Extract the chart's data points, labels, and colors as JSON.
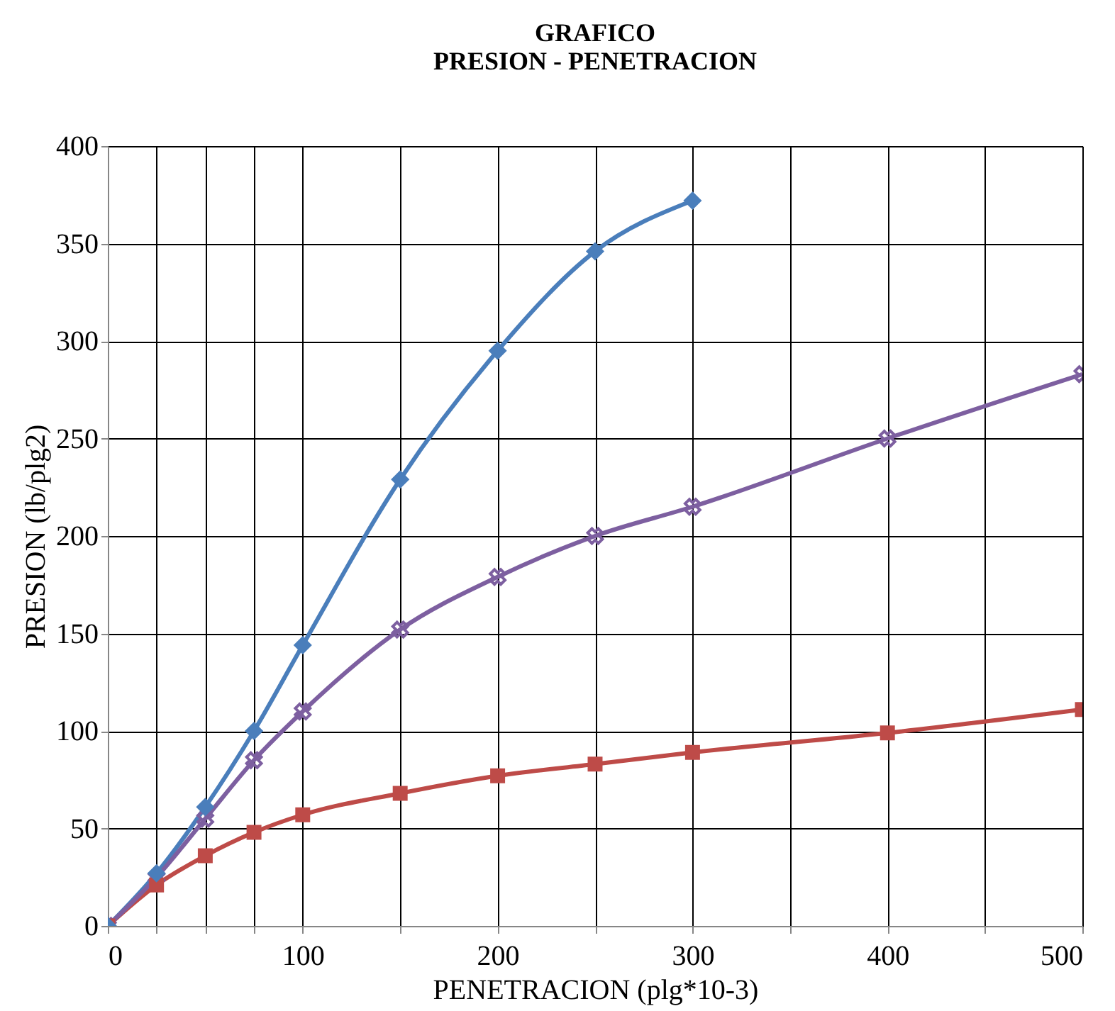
{
  "chart_data": {
    "type": "line",
    "title": [
      "GRAFICO",
      "PRESION - PENETRACION"
    ],
    "xlabel": "PENETRACION (plg*10-3)",
    "ylabel": "PRESION (lb/plg2)",
    "x": [
      0,
      25,
      50,
      75,
      100,
      150,
      200,
      250,
      300,
      400,
      500
    ],
    "series": [
      {
        "color": "#4a7ebb",
        "marker": "diamond",
        "values": [
          0,
          27,
          61,
          100,
          144,
          229,
          295,
          346,
          372,
          null,
          null
        ]
      },
      {
        "color": "#be4b48",
        "marker": "square",
        "values": [
          0,
          21,
          36,
          48,
          57,
          68,
          77,
          83,
          89,
          99,
          111
        ]
      },
      {
        "color": "#7d5fa0",
        "marker": "cross",
        "values": [
          0,
          25,
          55,
          85,
          110,
          152,
          179,
          200,
          215,
          250,
          283
        ]
      }
    ],
    "xlim": [
      0,
      500
    ],
    "xticks": [
      0,
      {
        "value": 25,
        "label": null
      },
      {
        "value": 50,
        "label": null
      },
      {
        "value": 75,
        "label": null
      },
      100,
      {
        "value": 150,
        "label": null
      },
      200,
      {
        "value": 250,
        "label": null
      },
      300,
      {
        "value": 350,
        "label": null
      },
      400,
      {
        "value": 450,
        "label": null
      },
      500
    ],
    "ylim": [
      0,
      400
    ],
    "yticks": [
      0,
      50,
      100,
      150,
      200,
      250,
      300,
      350,
      400
    ],
    "grid": true
  }
}
